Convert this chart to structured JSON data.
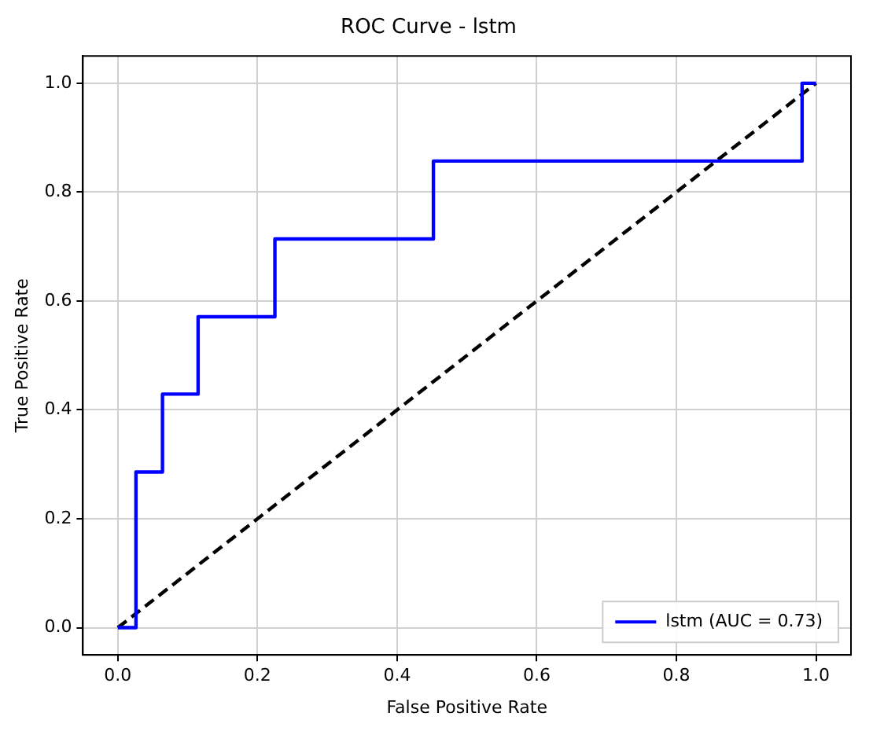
{
  "chart_data": {
    "type": "line",
    "title": "ROC Curve - lstm",
    "xlabel": "False Positive Rate",
    "ylabel": "True Positive Rate",
    "xlim": [
      -0.05,
      1.05
    ],
    "ylim": [
      -0.05,
      1.05
    ],
    "xticks": [
      {
        "value": 0,
        "label": "0.0"
      },
      {
        "value": 0.2,
        "label": "0.2"
      },
      {
        "value": 0.4,
        "label": "0.4"
      },
      {
        "value": 0.6,
        "label": "0.6"
      },
      {
        "value": 0.8,
        "label": "0.8"
      },
      {
        "value": 1,
        "label": "1.0"
      }
    ],
    "yticks": [
      {
        "value": 0,
        "label": "0.0"
      },
      {
        "value": 0.2,
        "label": "0.2"
      },
      {
        "value": 0.4,
        "label": "0.4"
      },
      {
        "value": 0.6,
        "label": "0.6"
      },
      {
        "value": 0.8,
        "label": "0.8"
      },
      {
        "value": 1,
        "label": "1.0"
      }
    ],
    "grid": true,
    "legend": "bottom right",
    "marker": "none",
    "series": [
      {
        "name": "lstm (AUC = 0.73)",
        "type": "step",
        "color": "#0000ff",
        "line_style": "solid",
        "x": [
          0,
          0.026,
          0.064,
          0.115,
          0.225,
          0.452,
          0.98,
          1.0
        ],
        "values": [
          0,
          0.286,
          0.429,
          0.571,
          0.714,
          0.857,
          1.0,
          1.0
        ]
      },
      {
        "color": "#000000",
        "line_style": "dashed",
        "x": [
          0,
          1
        ],
        "values": [
          0,
          1
        ]
      }
    ]
  }
}
